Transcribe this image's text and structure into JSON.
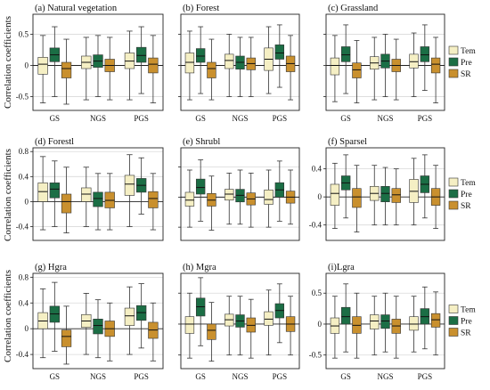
{
  "figure": {
    "y_axis_label": "Correlation coefficients"
  },
  "colors": {
    "Tem": "#f5efc4",
    "Pre": "#1b6e45",
    "SR": "#c9902e",
    "grid": "#d9d9d9"
  },
  "chart_data": [
    {
      "type": "boxplot",
      "title": "(a) Natural vegetation",
      "categories": [
        "GS",
        "NGS",
        "PGS"
      ],
      "yticks": [
        -0.5,
        0,
        0.5
      ],
      "ylim": [
        -0.72,
        0.82
      ],
      "series": [
        {
          "name": "Tem",
          "boxes": [
            [
              -0.6,
              -0.14,
              0.02,
              0.13,
              0.48
            ],
            [
              -0.55,
              -0.05,
              0.05,
              0.15,
              0.45
            ],
            [
              -0.55,
              -0.05,
              0.07,
              0.2,
              0.55
            ]
          ]
        },
        {
          "name": "Pre",
          "boxes": [
            [
              -0.5,
              0.06,
              0.17,
              0.28,
              0.62
            ],
            [
              -0.5,
              -0.03,
              0.07,
              0.17,
              0.48
            ],
            [
              -0.45,
              0.05,
              0.16,
              0.29,
              0.62
            ]
          ]
        },
        {
          "name": "SR",
          "boxes": [
            [
              -0.62,
              -0.2,
              -0.05,
              0.05,
              0.42
            ],
            [
              -0.55,
              -0.1,
              0.0,
              0.1,
              0.45
            ],
            [
              -0.6,
              -0.12,
              0.02,
              0.12,
              0.48
            ]
          ]
        }
      ],
      "legend": false,
      "y_tick_labels": true,
      "x_tick_labels": true
    },
    {
      "type": "boxplot",
      "title": "(b) Forest",
      "categories": [
        "GS",
        "NGS",
        "PGS"
      ],
      "yticks": [
        -0.5,
        0,
        0.5
      ],
      "ylim": [
        -0.72,
        0.82
      ],
      "series": [
        {
          "name": "Tem",
          "boxes": [
            [
              -0.55,
              -0.12,
              0.05,
              0.2,
              0.55
            ],
            [
              -0.5,
              -0.05,
              0.08,
              0.18,
              0.5
            ],
            [
              -0.45,
              -0.08,
              0.1,
              0.28,
              0.62
            ]
          ]
        },
        {
          "name": "Pre",
          "boxes": [
            [
              -0.45,
              0.05,
              0.15,
              0.27,
              0.62
            ],
            [
              -0.5,
              -0.06,
              0.05,
              0.15,
              0.45
            ],
            [
              -0.35,
              0.1,
              0.2,
              0.33,
              0.65
            ]
          ]
        },
        {
          "name": "SR",
          "boxes": [
            [
              -0.55,
              -0.2,
              -0.05,
              0.05,
              0.42
            ],
            [
              -0.5,
              -0.07,
              0.03,
              0.12,
              0.45
            ],
            [
              -0.55,
              -0.1,
              0.03,
              0.15,
              0.48
            ]
          ]
        }
      ],
      "legend": false,
      "y_tick_labels": false,
      "x_tick_labels": true
    },
    {
      "type": "boxplot",
      "title": "(c) Grassland",
      "categories": [
        "GS",
        "NGS",
        "PGS"
      ],
      "yticks": [
        -0.5,
        0,
        0.5
      ],
      "ylim": [
        -0.72,
        0.82
      ],
      "series": [
        {
          "name": "Tem",
          "boxes": [
            [
              -0.58,
              -0.15,
              0.0,
              0.12,
              0.48
            ],
            [
              -0.55,
              -0.06,
              0.04,
              0.14,
              0.45
            ],
            [
              -0.5,
              -0.04,
              0.06,
              0.18,
              0.52
            ]
          ]
        },
        {
          "name": "Pre",
          "boxes": [
            [
              -0.45,
              0.06,
              0.17,
              0.3,
              0.65
            ],
            [
              -0.5,
              -0.04,
              0.07,
              0.18,
              0.5
            ],
            [
              -0.4,
              0.06,
              0.17,
              0.3,
              0.65
            ]
          ]
        },
        {
          "name": "SR",
          "boxes": [
            [
              -0.6,
              -0.2,
              -0.07,
              0.04,
              0.4
            ],
            [
              -0.55,
              -0.1,
              0.0,
              0.1,
              0.42
            ],
            [
              -0.6,
              -0.12,
              0.02,
              0.12,
              0.45
            ]
          ]
        }
      ],
      "legend": true,
      "y_tick_labels": false,
      "x_tick_labels": true
    },
    {
      "type": "boxplot",
      "title": "(d) Forestl",
      "categories": [
        "GS",
        "NGS",
        "PGS"
      ],
      "yticks": [
        -0.4,
        0,
        0.4,
        0.8
      ],
      "ylim": [
        -0.62,
        0.86
      ],
      "series": [
        {
          "name": "Tem",
          "boxes": [
            [
              -0.45,
              0.0,
              0.16,
              0.3,
              0.72
            ],
            [
              -0.4,
              0.0,
              0.12,
              0.22,
              0.55
            ],
            [
              -0.4,
              0.1,
              0.28,
              0.42,
              0.75
            ]
          ]
        },
        {
          "name": "Pre",
          "boxes": [
            [
              -0.4,
              0.06,
              0.2,
              0.3,
              0.65
            ],
            [
              -0.45,
              -0.08,
              0.05,
              0.15,
              0.45
            ],
            [
              -0.2,
              0.15,
              0.26,
              0.37,
              0.7
            ]
          ]
        },
        {
          "name": "SR",
          "boxes": [
            [
              -0.5,
              -0.18,
              0.0,
              0.12,
              0.55
            ],
            [
              -0.45,
              -0.1,
              0.02,
              0.15,
              0.45
            ],
            [
              -0.45,
              -0.1,
              0.05,
              0.16,
              0.45
            ]
          ]
        }
      ],
      "legend": false,
      "y_tick_labels": true,
      "x_tick_labels": false
    },
    {
      "type": "boxplot",
      "title": "(e) Shrubl",
      "categories": [
        "GS",
        "NGS",
        "PGS"
      ],
      "yticks": [
        -0.5,
        0,
        0.5
      ],
      "ylim": [
        -0.72,
        0.82
      ],
      "series": [
        {
          "name": "Tem",
          "boxes": [
            [
              -0.5,
              -0.15,
              -0.05,
              0.08,
              0.45
            ],
            [
              -0.45,
              -0.05,
              0.05,
              0.13,
              0.4
            ],
            [
              -0.5,
              -0.12,
              -0.04,
              0.12,
              0.45
            ]
          ]
        },
        {
          "name": "Pre",
          "boxes": [
            [
              -0.4,
              0.05,
              0.16,
              0.3,
              0.62
            ],
            [
              -0.45,
              -0.08,
              0.03,
              0.13,
              0.45
            ],
            [
              -0.4,
              0.0,
              0.12,
              0.24,
              0.6
            ]
          ]
        },
        {
          "name": "SR",
          "boxes": [
            [
              -0.55,
              -0.15,
              -0.05,
              0.06,
              0.35
            ],
            [
              -0.5,
              -0.13,
              -0.03,
              0.07,
              0.4
            ],
            [
              -0.45,
              -0.1,
              0.0,
              0.1,
              0.45
            ]
          ]
        }
      ],
      "legend": false,
      "y_tick_labels": false,
      "x_tick_labels": false
    },
    {
      "type": "boxplot",
      "title": "(f) Sparsel",
      "categories": [
        "GS",
        "NGS",
        "PGS"
      ],
      "yticks": [
        -0.4,
        0,
        0.4
      ],
      "ylim": [
        -0.62,
        0.7
      ],
      "series": [
        {
          "name": "Tem",
          "boxes": [
            [
              -0.45,
              -0.12,
              0.05,
              0.18,
              0.48
            ],
            [
              -0.4,
              -0.05,
              0.05,
              0.15,
              0.45
            ],
            [
              -0.4,
              -0.08,
              0.08,
              0.25,
              0.55
            ]
          ]
        },
        {
          "name": "Pre",
          "boxes": [
            [
              -0.3,
              0.1,
              0.2,
              0.3,
              0.6
            ],
            [
              -0.4,
              -0.07,
              0.05,
              0.15,
              0.42
            ],
            [
              -0.3,
              0.06,
              0.18,
              0.3,
              0.6
            ]
          ]
        },
        {
          "name": "SR",
          "boxes": [
            [
              -0.5,
              -0.15,
              0.0,
              0.12,
              0.45
            ],
            [
              -0.4,
              -0.08,
              0.03,
              0.12,
              0.4
            ],
            [
              -0.45,
              -0.12,
              0.0,
              0.12,
              0.45
            ]
          ]
        }
      ],
      "legend": true,
      "y_tick_labels": true,
      "x_tick_labels": false
    },
    {
      "type": "boxplot",
      "title": "(g) Hgra",
      "categories": [
        "GS",
        "NGS",
        "PGS"
      ],
      "yticks": [
        -0.4,
        0,
        0.4,
        0.8
      ],
      "ylim": [
        -0.62,
        0.86
      ],
      "series": [
        {
          "name": "Tem",
          "boxes": [
            [
              -0.45,
              0.0,
              0.12,
              0.25,
              0.62
            ],
            [
              -0.4,
              0.02,
              0.12,
              0.22,
              0.55
            ],
            [
              -0.4,
              0.05,
              0.2,
              0.32,
              0.65
            ]
          ]
        },
        {
          "name": "Pre",
          "boxes": [
            [
              -0.35,
              0.1,
              0.23,
              0.35,
              0.72
            ],
            [
              -0.45,
              -0.08,
              0.05,
              0.15,
              0.45
            ],
            [
              -0.3,
              0.13,
              0.25,
              0.36,
              0.7
            ]
          ]
        },
        {
          "name": "SR",
          "boxes": [
            [
              -0.55,
              -0.28,
              -0.12,
              -0.02,
              0.35
            ],
            [
              -0.5,
              -0.12,
              0.0,
              0.12,
              0.4
            ],
            [
              -0.5,
              -0.15,
              -0.02,
              0.1,
              0.4
            ]
          ]
        }
      ],
      "legend": false,
      "y_tick_labels": true,
      "x_tick_labels": true
    },
    {
      "type": "boxplot",
      "title": "(h) Mgra",
      "categories": [
        "GS",
        "NGS",
        "PGS"
      ],
      "yticks": [
        -0.5,
        0,
        0.5
      ],
      "ylim": [
        -0.72,
        0.82
      ],
      "series": [
        {
          "name": "Tem",
          "boxes": [
            [
              -0.55,
              -0.15,
              0.0,
              0.12,
              0.5
            ],
            [
              -0.5,
              -0.03,
              0.07,
              0.16,
              0.45
            ],
            [
              -0.5,
              -0.02,
              0.08,
              0.2,
              0.55
            ]
          ]
        },
        {
          "name": "Pre",
          "boxes": [
            [
              -0.35,
              0.13,
              0.28,
              0.42,
              0.75
            ],
            [
              -0.5,
              -0.05,
              0.05,
              0.15,
              0.45
            ],
            [
              -0.3,
              0.1,
              0.22,
              0.33,
              0.65
            ]
          ]
        },
        {
          "name": "SR",
          "boxes": [
            [
              -0.6,
              -0.25,
              -0.1,
              0.0,
              0.35
            ],
            [
              -0.55,
              -0.13,
              -0.02,
              0.1,
              0.4
            ],
            [
              -0.5,
              -0.12,
              0.0,
              0.12,
              0.45
            ]
          ]
        }
      ],
      "legend": false,
      "y_tick_labels": false,
      "x_tick_labels": true
    },
    {
      "type": "boxplot",
      "title": "(i)Lgra",
      "categories": [
        "GS",
        "NGS",
        "PGS"
      ],
      "yticks": [
        -0.5,
        0,
        0.5
      ],
      "ylim": [
        -0.72,
        0.82
      ],
      "series": [
        {
          "name": "Tem",
          "boxes": [
            [
              -0.55,
              -0.15,
              -0.03,
              0.1,
              0.45
            ],
            [
              -0.5,
              -0.08,
              0.05,
              0.15,
              0.45
            ],
            [
              -0.45,
              -0.1,
              0.0,
              0.12,
              0.45
            ]
          ]
        },
        {
          "name": "Pre",
          "boxes": [
            [
              -0.45,
              0.0,
              0.12,
              0.27,
              0.65
            ],
            [
              -0.45,
              -0.07,
              0.05,
              0.15,
              0.5
            ],
            [
              -0.4,
              0.0,
              0.12,
              0.25,
              0.6
            ]
          ]
        },
        {
          "name": "SR",
          "boxes": [
            [
              -0.55,
              -0.15,
              -0.02,
              0.12,
              0.5
            ],
            [
              -0.55,
              -0.15,
              -0.03,
              0.08,
              0.45
            ],
            [
              -0.5,
              -0.05,
              0.07,
              0.17,
              0.52
            ]
          ]
        }
      ],
      "legend": true,
      "y_tick_labels": true,
      "x_tick_labels": true
    }
  ]
}
